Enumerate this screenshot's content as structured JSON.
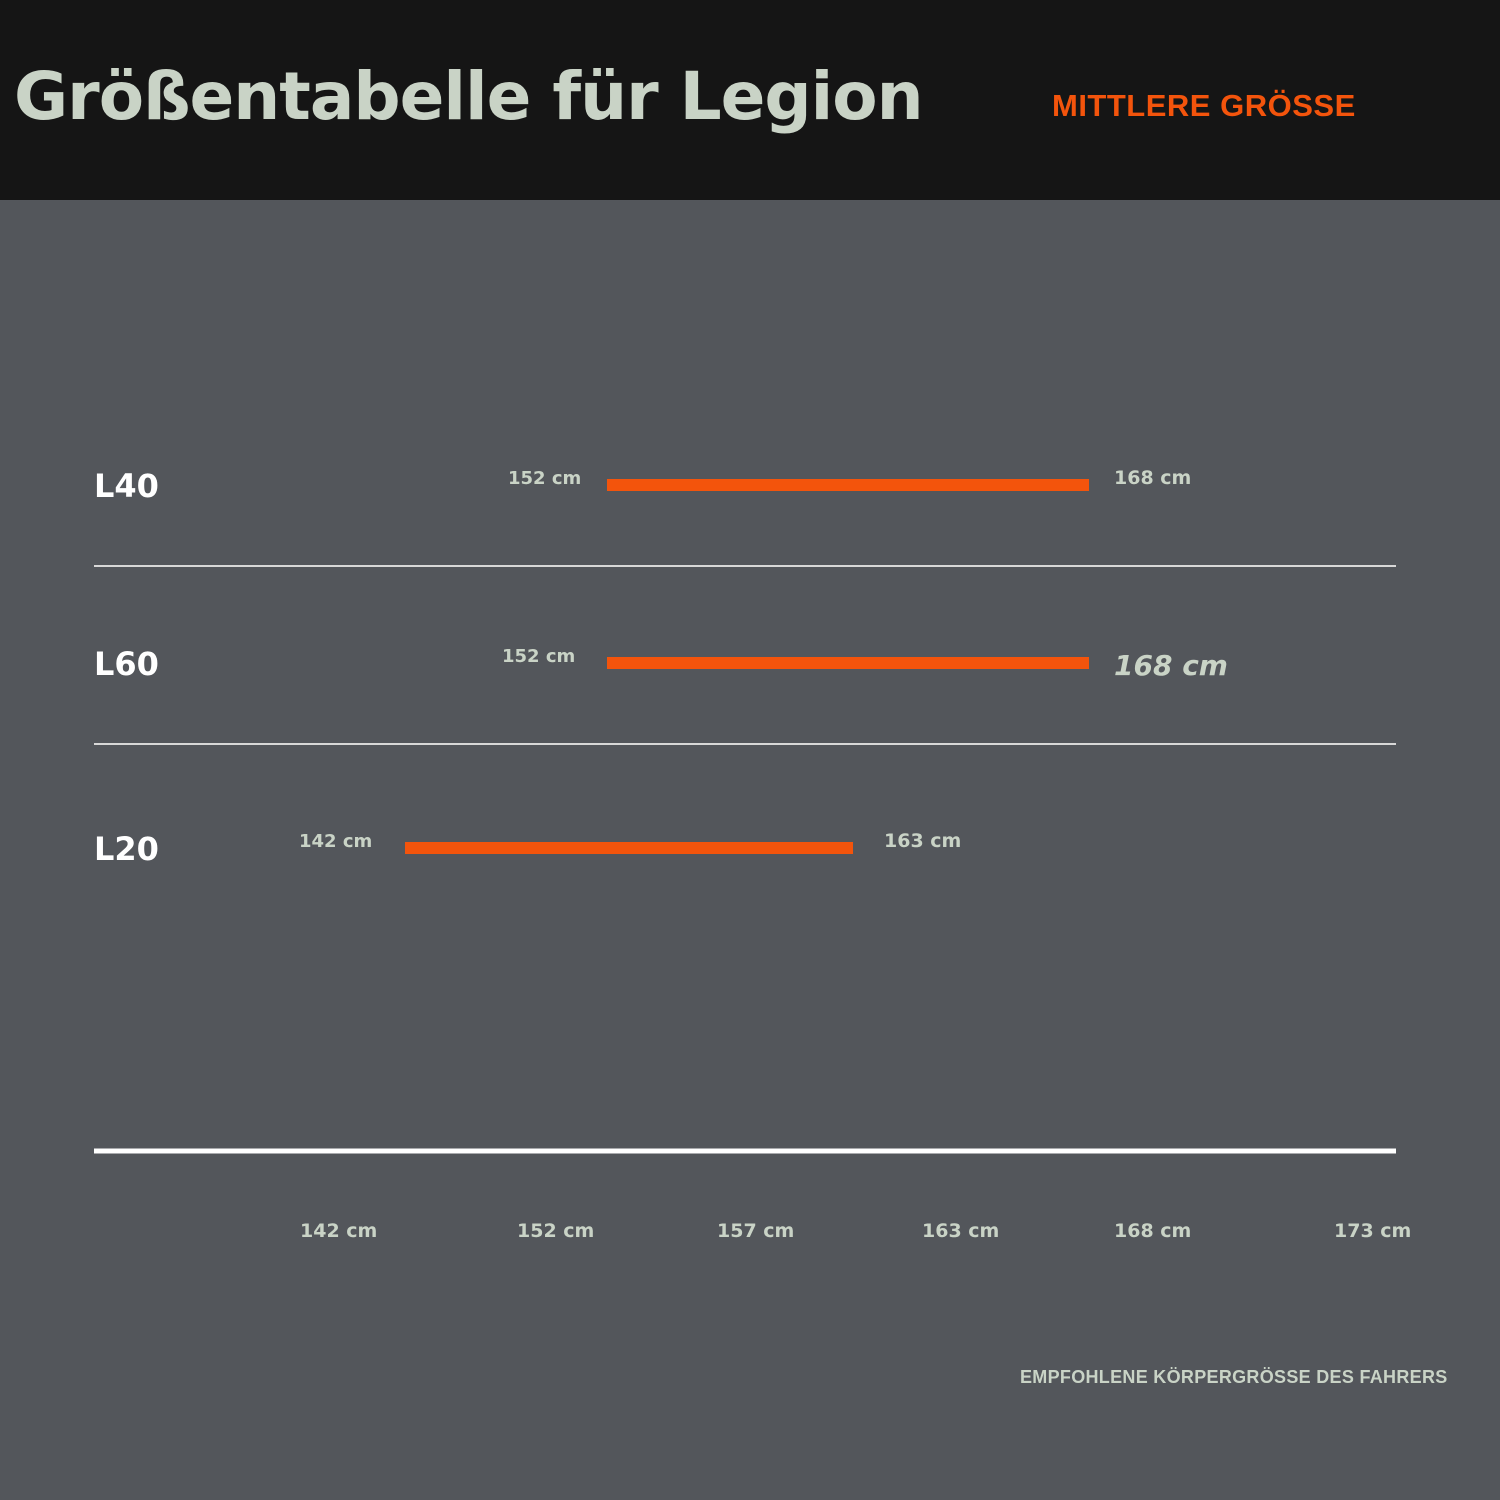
{
  "header": {
    "title": "Größentabelle für Legion",
    "subtitle": "MITTLERE GRÖSSE"
  },
  "footer": {
    "caption": "EMPFOHLENE KÖRPERGRÖSSE DES FAHRERS"
  },
  "colors": {
    "background": "#53565b",
    "header_bg": "#151515",
    "bar": "#f3540c",
    "label_text": "#c9d3c6",
    "model_text": "#ffffff"
  },
  "chart_data": {
    "type": "bar",
    "orientation": "horizontal-range",
    "categories": [
      "L40",
      "L60",
      "L20"
    ],
    "ranges": [
      {
        "category": "L40",
        "start": 152,
        "end": 168,
        "start_label": "152 cm",
        "end_label": "168 cm"
      },
      {
        "category": "L60",
        "start": 152,
        "end": 168,
        "start_label": "152 cm",
        "end_label": "168 cm"
      },
      {
        "category": "L20",
        "start": 142,
        "end": 163,
        "start_label": "142 cm",
        "end_label": "163 cm"
      }
    ],
    "x_ticks": [
      {
        "value": 142,
        "label": "142 cm"
      },
      {
        "value": 152,
        "label": "152 cm"
      },
      {
        "value": 157,
        "label": "157 cm"
      },
      {
        "value": 163,
        "label": "163 cm"
      },
      {
        "value": 168,
        "label": "168 cm"
      },
      {
        "value": 173,
        "label": "173 cm"
      }
    ],
    "xlabel": "EMPFOHLENE KÖRPERGRÖSSE DES FAHRERS",
    "grid": false
  }
}
